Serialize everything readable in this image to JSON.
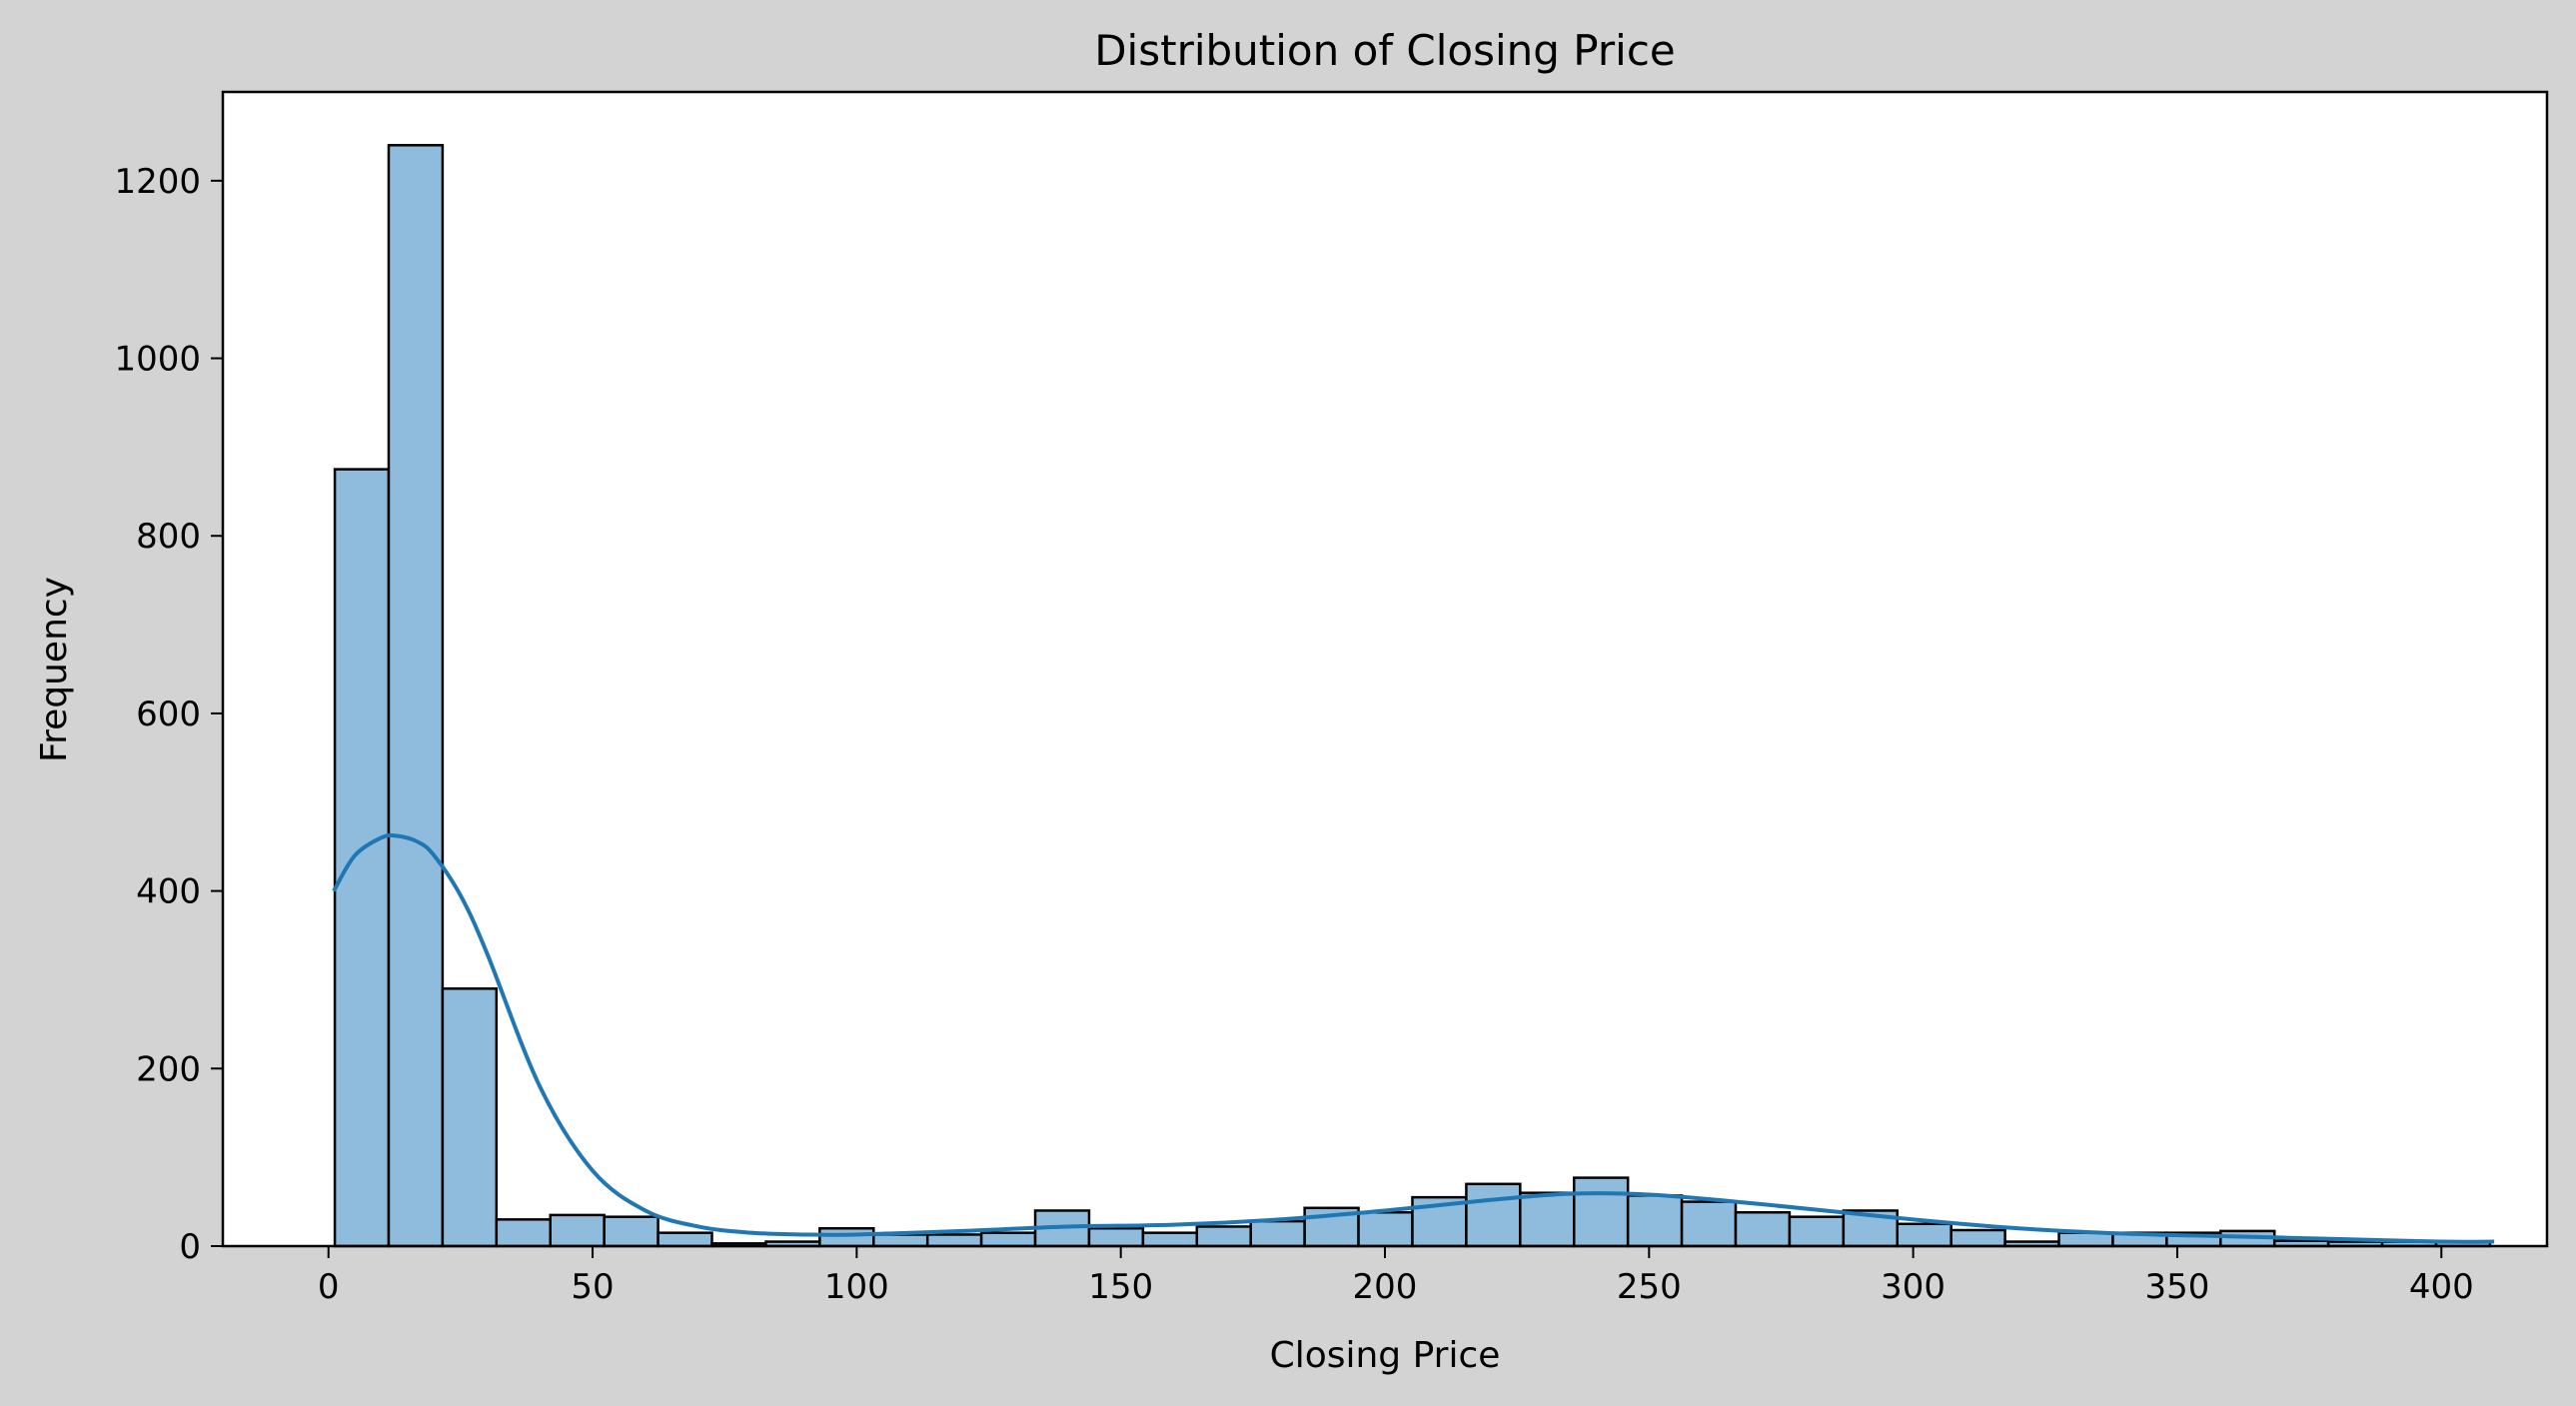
{
  "chart_data": {
    "type": "bar",
    "title": "Distribution of Closing Price",
    "xlabel": "Closing Price",
    "ylabel": "Frequency",
    "xlim": [
      -20,
      420
    ],
    "ylim": [
      0,
      1300
    ],
    "xticks": [
      0,
      50,
      100,
      150,
      200,
      250,
      300,
      350,
      400
    ],
    "yticks": [
      0,
      200,
      400,
      600,
      800,
      1000,
      1200
    ],
    "grid": false,
    "legend": "none",
    "bin_edges": [
      1.2,
      11.4,
      21.6,
      31.8,
      42.0,
      52.2,
      62.4,
      72.6,
      82.8,
      93.0,
      103.2,
      113.4,
      123.6,
      133.8,
      144.0,
      154.2,
      164.4,
      174.6,
      184.8,
      195.0,
      205.2,
      215.4,
      225.6,
      235.8,
      246.0,
      256.2,
      266.4,
      276.6,
      286.8,
      297.0,
      307.2,
      317.4,
      327.6,
      337.8,
      348.0,
      358.2,
      368.4,
      378.6,
      388.8,
      399.0,
      409.2
    ],
    "counts": [
      875,
      1240,
      290,
      30,
      35,
      33,
      15,
      3,
      5,
      20,
      13,
      13,
      15,
      40,
      20,
      15,
      22,
      28,
      43,
      38,
      55,
      70,
      60,
      77,
      57,
      50,
      38,
      33,
      40,
      25,
      18,
      5,
      15,
      15,
      15,
      17,
      6,
      5,
      5,
      5
    ],
    "kde": {
      "x": [
        1,
        5,
        10,
        13,
        17,
        20,
        25,
        30,
        40,
        50,
        60,
        70,
        80,
        90,
        100,
        120,
        140,
        160,
        180,
        200,
        220,
        235,
        250,
        270,
        300,
        320,
        340,
        360,
        380,
        400,
        410
      ],
      "y": [
        400,
        440,
        460,
        462,
        455,
        440,
        395,
        330,
        180,
        85,
        40,
        22,
        15,
        13,
        13,
        17,
        22,
        24,
        30,
        40,
        52,
        59,
        58,
        48,
        30,
        20,
        14,
        11,
        8,
        5,
        5
      ]
    },
    "colors": {
      "bar_fill": "#8fbcdc",
      "bar_edge": "#000000",
      "kde_line": "#1f77b4",
      "axes_background": "#ffffff",
      "figure_background": "#d3d3d3"
    }
  }
}
